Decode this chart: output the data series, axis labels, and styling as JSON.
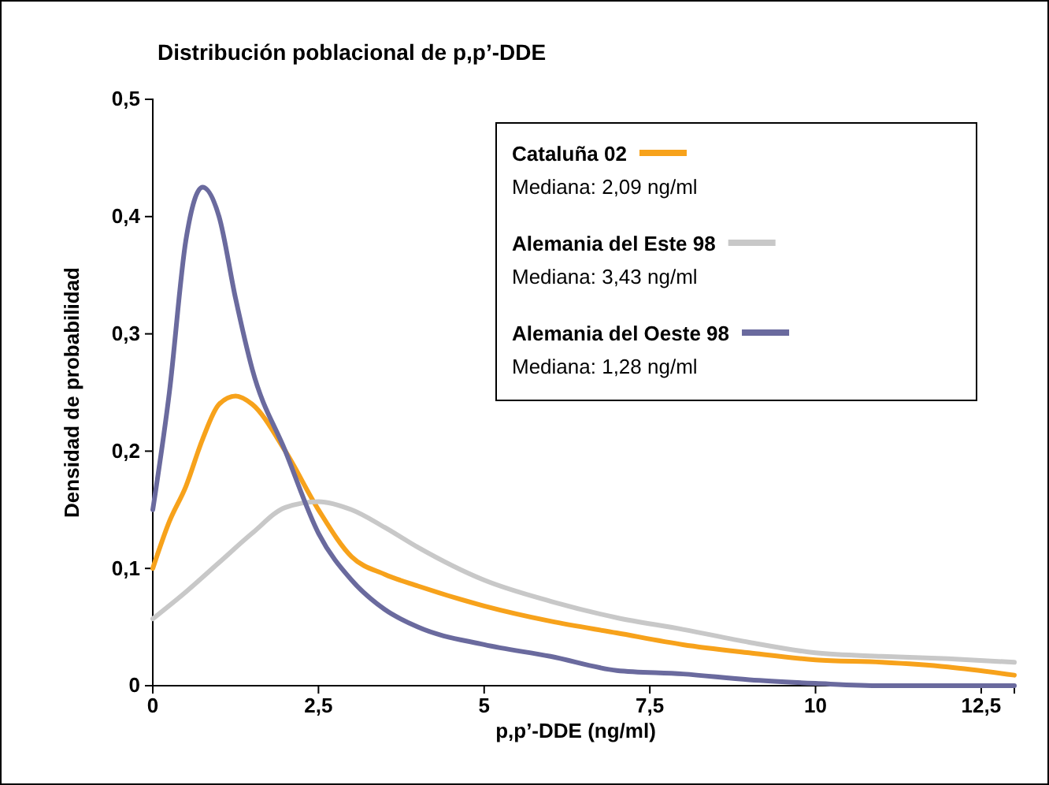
{
  "chart_data": {
    "type": "line",
    "title": "Distribución poblacional de p,p’-DDE",
    "xlabel": "p,p’-DDE (ng/ml)",
    "ylabel": "Densidad de probabilidad",
    "xlim": [
      0,
      13
    ],
    "xticks": [
      0,
      {
        "value": 2.5,
        "label": "2,5"
      },
      5,
      {
        "value": 7.5,
        "label": "7,5"
      },
      10,
      {
        "value": 12.5,
        "label": "12,5"
      }
    ],
    "ylim": [
      0,
      0.5
    ],
    "yticks": [
      0,
      {
        "value": 0.1,
        "label": "0,1"
      },
      {
        "value": 0.2,
        "label": "0,2"
      },
      {
        "value": 0.3,
        "label": "0,3"
      },
      {
        "value": 0.4,
        "label": "0,4"
      },
      {
        "value": 0.5,
        "label": "0,5"
      }
    ],
    "legend": "top right",
    "marker": "none",
    "line_style": "solid",
    "annotations": [
      "Mediana: 2,09 ng/ml",
      "Mediana: 3,43 ng/ml",
      "Mediana: 1,28 ng/ml"
    ],
    "series": [
      {
        "name": "Cataluña 02",
        "color": "#f7a21b",
        "x": [
          0,
          0.25,
          0.5,
          0.75,
          1,
          1.25,
          1.5,
          2,
          2.5,
          3,
          3.5,
          4,
          5,
          6,
          7,
          8,
          9,
          10,
          11,
          12,
          13
        ],
        "values": [
          0.1,
          0.14,
          0.17,
          0.21,
          0.24,
          0.247,
          0.24,
          0.2,
          0.15,
          0.11,
          0.095,
          0.085,
          0.068,
          0.055,
          0.045,
          0.035,
          0.028,
          0.022,
          0.02,
          0.016,
          0.009
        ]
      },
      {
        "name": "Alemania del Este 98",
        "color": "#c8c8c8",
        "x": [
          0,
          0.5,
          1,
          1.5,
          2,
          2.5,
          3,
          3.5,
          4,
          5,
          6,
          7,
          8,
          9,
          10,
          11,
          12,
          13
        ],
        "values": [
          0.057,
          0.08,
          0.105,
          0.13,
          0.152,
          0.157,
          0.15,
          0.135,
          0.118,
          0.09,
          0.072,
          0.058,
          0.048,
          0.037,
          0.028,
          0.025,
          0.023,
          0.02
        ]
      },
      {
        "name": "Alemania del Oeste 98",
        "color": "#6a6a9e",
        "x": [
          0,
          0.25,
          0.5,
          0.75,
          1,
          1.25,
          1.5,
          2,
          2.5,
          3,
          3.5,
          4,
          5,
          6,
          7,
          8,
          9,
          10,
          11,
          13
        ],
        "values": [
          0.15,
          0.25,
          0.38,
          0.425,
          0.4,
          0.33,
          0.27,
          0.2,
          0.13,
          0.09,
          0.065,
          0.05,
          0.035,
          0.025,
          0.013,
          0.01,
          0.005,
          0.002,
          0,
          0
        ]
      }
    ]
  }
}
